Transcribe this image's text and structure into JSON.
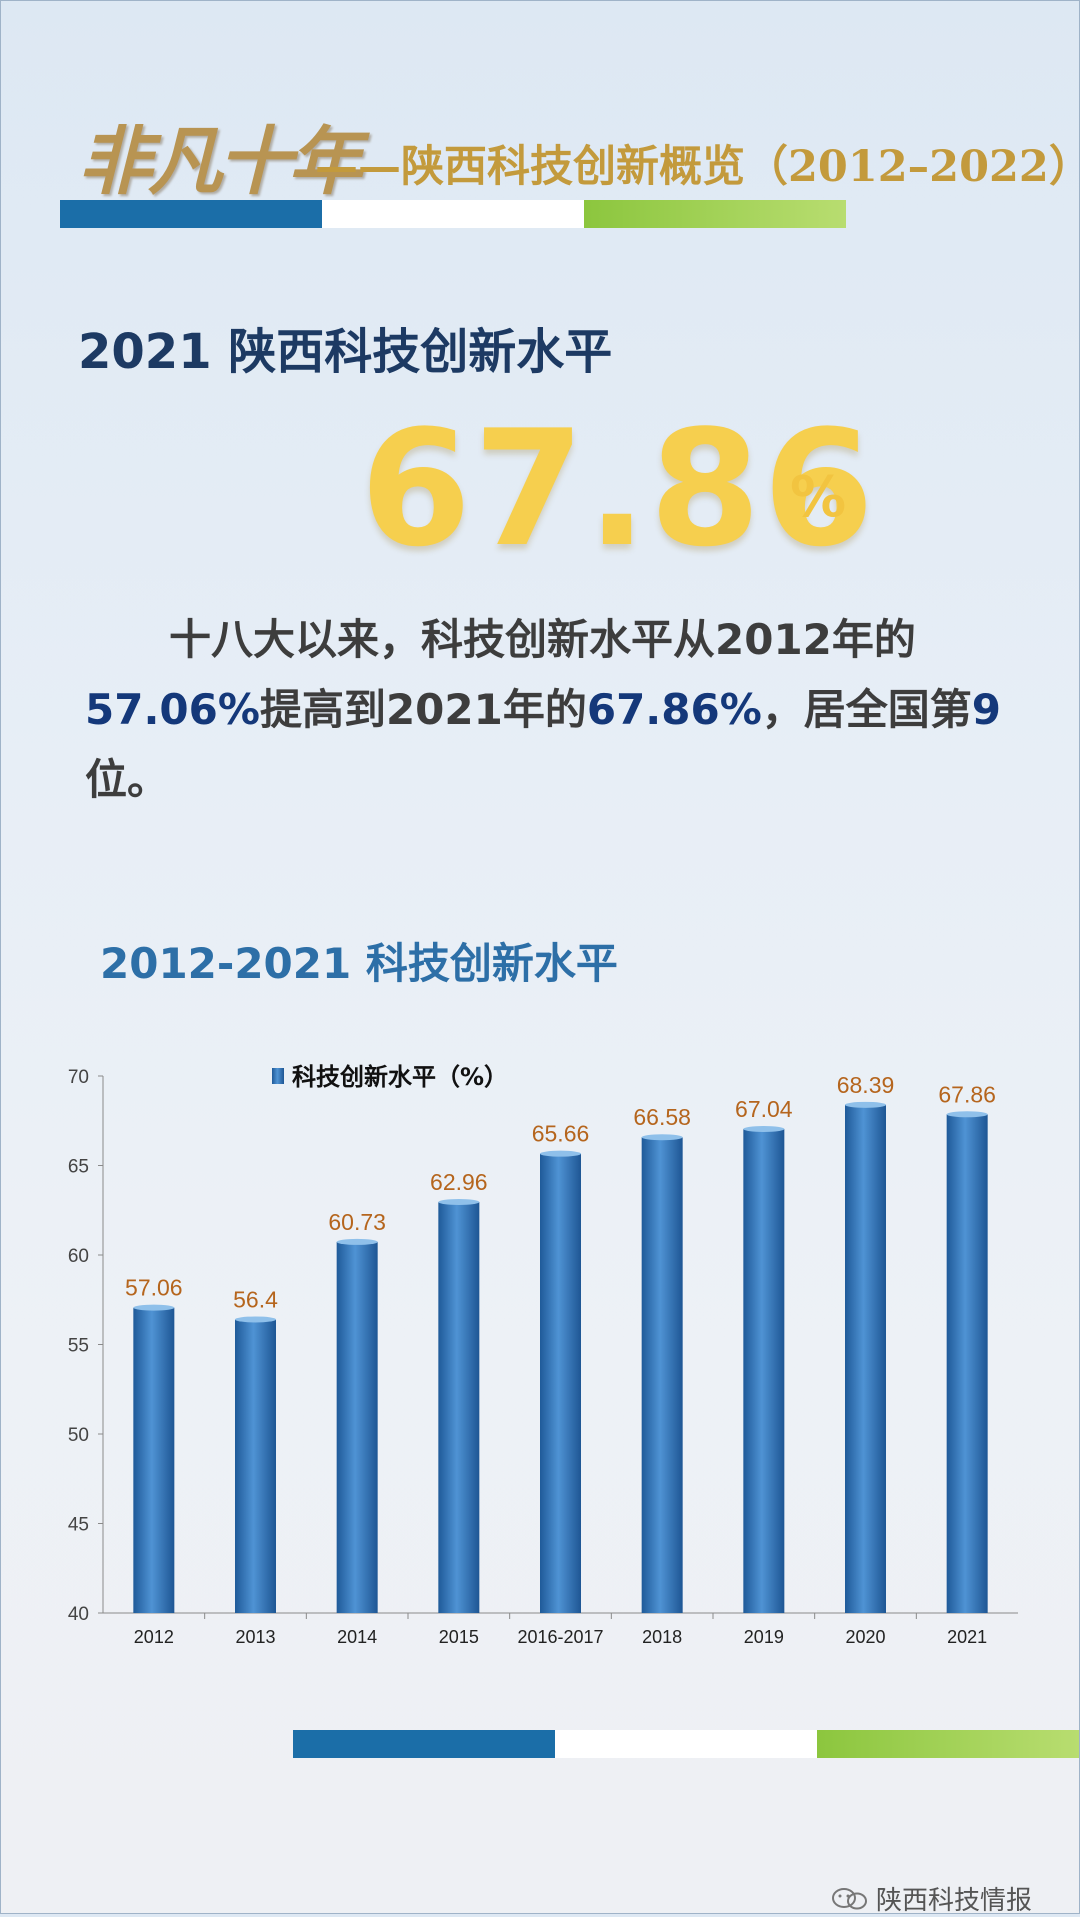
{
  "header": {
    "calligraphy": "非凡十年",
    "title": "——陕西科技创新概览（2012–2022）"
  },
  "highlight": {
    "heading": "2021 陕西科技创新水平",
    "value": "67.86",
    "unit": "%"
  },
  "paragraph": {
    "part1": "十八大以来，科技创新水平从2012年的",
    "v1": "57.06%",
    "part2": "提高到2021年的",
    "v2": "67.86%",
    "part3": "，居全国第",
    "v3": "9",
    "part4": "位。"
  },
  "chart_section": {
    "title": "2012-2021 科技创新水平"
  },
  "colors": {
    "bar": "#2f6fb0",
    "data_label": "#b5651d",
    "stripe_blue": "#1b6ea8",
    "stripe_green": "#8cc63e",
    "value_gold": "#f6cf4e"
  },
  "chart_data": {
    "type": "bar",
    "categories": [
      "2012",
      "2013",
      "2014",
      "2015",
      "2016-2017",
      "2018",
      "2019",
      "2020",
      "2021"
    ],
    "series": [
      {
        "name": "科技创新水平（%）",
        "values": [
          57.06,
          56.4,
          60.73,
          62.96,
          65.66,
          66.58,
          67.04,
          68.39,
          67.86
        ]
      }
    ],
    "data_labels": [
      "57.06",
      "56.4",
      "60.73",
      "62.96",
      "65.66",
      "66.58",
      "67.04",
      "68.39",
      "67.86"
    ],
    "ylim": [
      40,
      70
    ],
    "yticks": [
      40,
      45,
      50,
      55,
      60,
      65,
      70
    ],
    "legend_position": "top-left",
    "grid": false
  },
  "watermark": {
    "icon": "wechat-icon",
    "text": "陕西科技情报"
  }
}
